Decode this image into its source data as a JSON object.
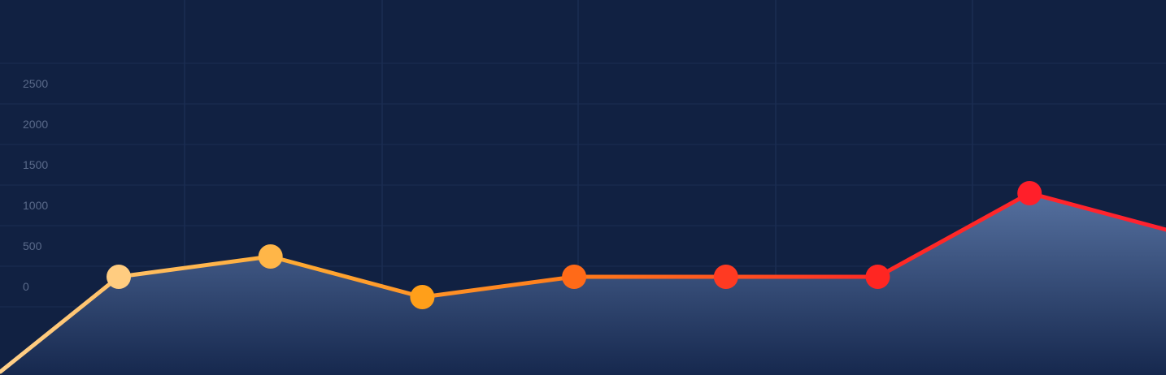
{
  "chart_data": {
    "type": "area",
    "y_tick_labels": [
      "2500",
      "2000",
      "1500",
      "1000",
      "500",
      "0"
    ],
    "ylim": [
      -800,
      3500
    ],
    "grid": true,
    "legend": "none",
    "line_gradient": [
      "#ffd08a",
      "#ffaa33",
      "#ff7a1a",
      "#ff2a24",
      "#ff2230"
    ],
    "area_gradient": [
      "#55709f",
      "#16284e"
    ],
    "series": [
      {
        "x": [
          -0.78,
          0,
          1,
          2,
          3,
          4,
          5,
          6,
          6.9
        ],
        "y": [
          -1050,
          120,
          370,
          -130,
          120,
          120,
          120,
          1150,
          700
        ],
        "markers": [
          false,
          true,
          true,
          true,
          true,
          true,
          true,
          true,
          false
        ],
        "marker_colors": [
          "",
          "#ffcc80",
          "#ffb648",
          "#ff9f1a",
          "#ff6a18",
          "#ff3a22",
          "#ff2622",
          "#ff1f2a",
          ""
        ]
      }
    ]
  }
}
